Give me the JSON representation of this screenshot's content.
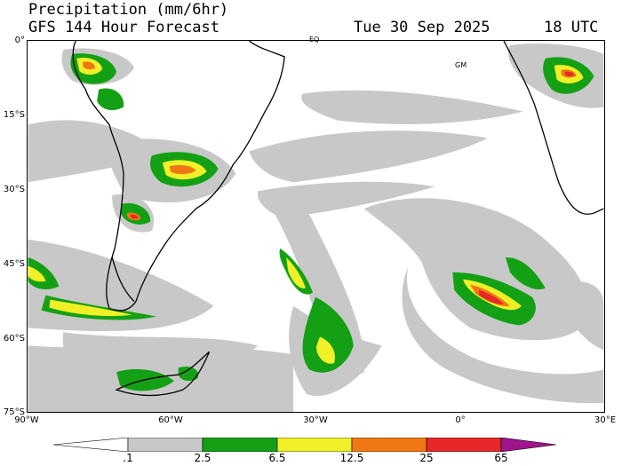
{
  "header": {
    "title": "Precipitation (mm/6hr)",
    "subtitle": "GFS 144 Hour Forecast",
    "date": "Tue 30 Sep 2025",
    "time": "18 UTC"
  },
  "map": {
    "lat_labels": [
      "0°",
      "15°S",
      "30°S",
      "45°S",
      "60°S",
      "75°S"
    ],
    "lon_labels": [
      "90°W",
      "60°W",
      "30°W",
      "0°",
      "30°E"
    ],
    "marker_labels": [
      "EQ",
      "GM"
    ]
  },
  "legend": {
    "levels": [
      ".1",
      "2.5",
      "6.5",
      "12.5",
      "25",
      "65"
    ],
    "colors": {
      "light": "#c8c8c8",
      "moderate": "#14a014",
      "heavy": "#f0f028",
      "very_heavy": "#f07814",
      "intense": "#e62828",
      "extreme": "#a0148c"
    }
  },
  "colors": {
    "background": "#ffffff",
    "coastline": "#000000"
  }
}
